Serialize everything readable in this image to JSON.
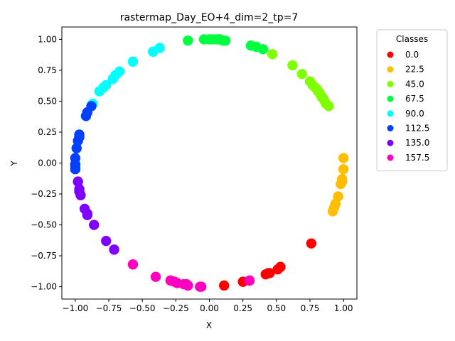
{
  "chart_data": {
    "type": "scatter",
    "title": "rastermap_Day_EO+4_dim=2_tp=7",
    "xlabel": "X",
    "ylabel": "Y",
    "xlim": [
      -1.1,
      1.1
    ],
    "ylim": [
      -1.1,
      1.1
    ],
    "x_ticks": [
      -1.0,
      -0.75,
      -0.5,
      -0.25,
      0.0,
      0.25,
      0.5,
      0.75,
      1.0
    ],
    "y_ticks": [
      -1.0,
      -0.75,
      -0.5,
      -0.25,
      0.0,
      0.25,
      0.5,
      0.75,
      1.0
    ],
    "x_tick_labels": [
      "−1.00",
      "−0.75",
      "−0.50",
      "−0.25",
      "0.00",
      "0.25",
      "0.50",
      "0.75",
      "1.00"
    ],
    "y_tick_labels": [
      "−1.00",
      "−0.75",
      "−0.50",
      "−0.25",
      "0.00",
      "0.25",
      "0.50",
      "0.75",
      "1.00"
    ],
    "grid": false,
    "legend": {
      "title": "Classes",
      "position": "outside-right",
      "entries": [
        {
          "label": "0.0",
          "color": "#ff0000"
        },
        {
          "label": "22.5",
          "color": "#ffbf00"
        },
        {
          "label": "45.0",
          "color": "#80ff00"
        },
        {
          "label": "67.5",
          "color": "#00ff40"
        },
        {
          "label": "90.0",
          "color": "#00ffff"
        },
        {
          "label": "112.5",
          "color": "#0040ff"
        },
        {
          "label": "135.0",
          "color": "#8000ff"
        },
        {
          "label": "157.5",
          "color": "#ff00bf"
        }
      ]
    },
    "series": [
      {
        "name": "0.0",
        "color": "#ff0000",
        "points": [
          [
            0.11,
            -0.99
          ],
          [
            0.25,
            -0.96
          ],
          [
            0.42,
            -0.9
          ],
          [
            0.44,
            -0.89
          ],
          [
            0.45,
            -0.89
          ],
          [
            0.51,
            -0.86
          ],
          [
            0.53,
            -0.84
          ],
          [
            0.76,
            -0.65
          ]
        ]
      },
      {
        "name": "22.5",
        "color": "#ffbf00",
        "points": [
          [
            1.0,
            0.04
          ],
          [
            1.0,
            -0.05
          ],
          [
            0.99,
            -0.13
          ],
          [
            0.99,
            -0.15
          ],
          [
            0.98,
            -0.17
          ],
          [
            0.96,
            -0.27
          ],
          [
            0.94,
            -0.33
          ],
          [
            0.93,
            -0.36
          ],
          [
            0.92,
            -0.39
          ]
        ]
      },
      {
        "name": "45.0",
        "color": "#80ff00",
        "points": [
          [
            0.47,
            0.88
          ],
          [
            0.62,
            0.79
          ],
          [
            0.69,
            0.72
          ],
          [
            0.75,
            0.66
          ],
          [
            0.77,
            0.63
          ],
          [
            0.79,
            0.61
          ],
          [
            0.8,
            0.6
          ],
          [
            0.81,
            0.58
          ],
          [
            0.82,
            0.57
          ],
          [
            0.83,
            0.55
          ],
          [
            0.84,
            0.53
          ],
          [
            0.85,
            0.52
          ],
          [
            0.86,
            0.5
          ],
          [
            0.87,
            0.48
          ],
          [
            0.89,
            0.46
          ]
        ]
      },
      {
        "name": "67.5",
        "color": "#00ff40",
        "points": [
          [
            -0.16,
            0.99
          ],
          [
            -0.04,
            1.0
          ],
          [
            0.0,
            1.0
          ],
          [
            0.02,
            1.0
          ],
          [
            0.05,
            1.0
          ],
          [
            0.07,
            1.0
          ],
          [
            0.08,
            1.0
          ],
          [
            0.1,
            0.99
          ],
          [
            0.12,
            0.99
          ],
          [
            0.31,
            0.95
          ],
          [
            0.35,
            0.94
          ],
          [
            0.4,
            0.92
          ]
        ]
      },
      {
        "name": "90.0",
        "color": "#00ffff",
        "points": [
          [
            -0.37,
            0.93
          ],
          [
            -0.42,
            0.9
          ],
          [
            -0.57,
            0.82
          ],
          [
            -0.67,
            0.74
          ],
          [
            -0.7,
            0.71
          ],
          [
            -0.72,
            0.68
          ],
          [
            -0.77,
            0.63
          ],
          [
            -0.79,
            0.61
          ],
          [
            -0.82,
            0.58
          ],
          [
            -0.87,
            0.48
          ]
        ]
      },
      {
        "name": "112.5",
        "color": "#0040ff",
        "points": [
          [
            -0.88,
            0.46
          ],
          [
            -0.91,
            0.41
          ],
          [
            -0.92,
            0.38
          ],
          [
            -0.97,
            0.23
          ],
          [
            -0.97,
            0.21
          ],
          [
            -0.98,
            0.18
          ],
          [
            -0.99,
            0.12
          ],
          [
            -1.0,
            0.04
          ],
          [
            -1.0,
            -0.01
          ],
          [
            -1.0,
            -0.03
          ],
          [
            -1.0,
            -0.05
          ]
        ]
      },
      {
        "name": "135.0",
        "color": "#8000ff",
        "points": [
          [
            -0.98,
            -0.15
          ],
          [
            -0.97,
            -0.21
          ],
          [
            -0.97,
            -0.23
          ],
          [
            -0.96,
            -0.26
          ],
          [
            -0.93,
            -0.37
          ],
          [
            -0.91,
            -0.41
          ],
          [
            -0.91,
            -0.42
          ],
          [
            -0.86,
            -0.5
          ],
          [
            -0.77,
            -0.63
          ],
          [
            -0.71,
            -0.7
          ]
        ]
      },
      {
        "name": "157.5",
        "color": "#ff00bf",
        "points": [
          [
            -0.57,
            -0.82
          ],
          [
            -0.4,
            -0.92
          ],
          [
            -0.29,
            -0.95
          ],
          [
            -0.26,
            -0.96
          ],
          [
            -0.24,
            -0.97
          ],
          [
            -0.19,
            -0.98
          ],
          [
            -0.17,
            -0.98
          ],
          [
            -0.16,
            -0.99
          ],
          [
            -0.06,
            -1.0
          ],
          [
            -0.07,
            -1.0
          ],
          [
            0.3,
            -0.95
          ]
        ]
      }
    ]
  }
}
